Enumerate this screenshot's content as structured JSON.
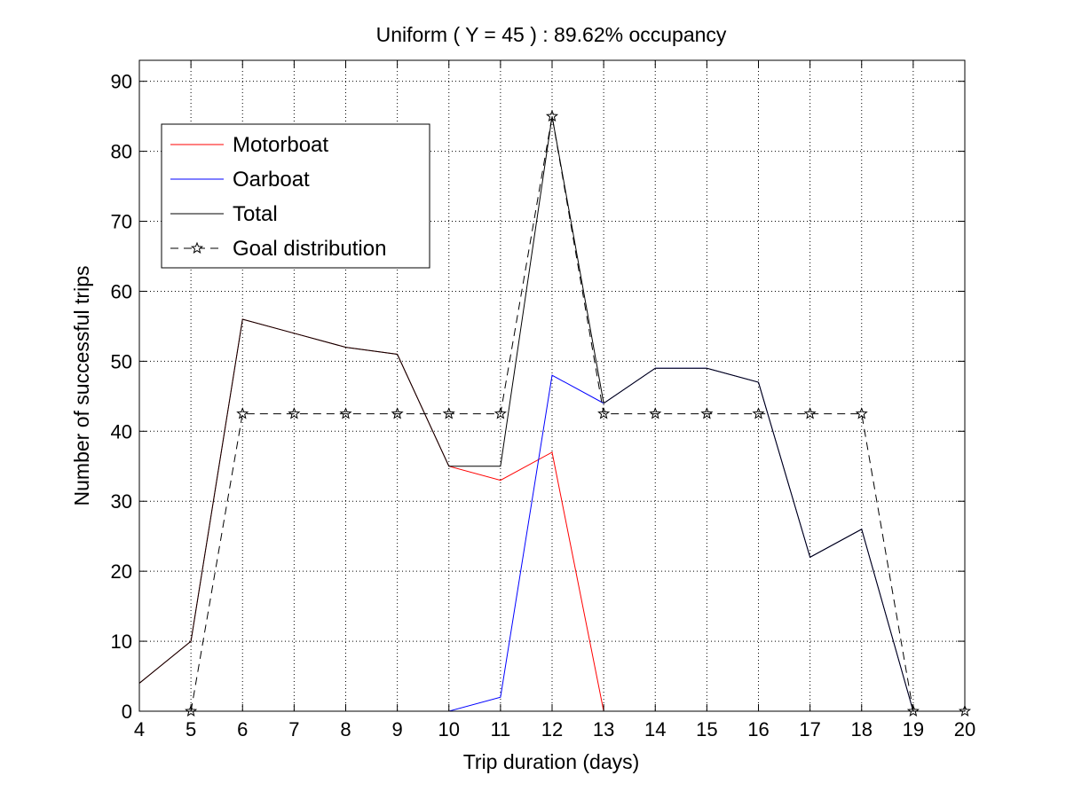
{
  "chart_data": {
    "type": "line",
    "title": "Uniform ( Y = 45 ) : 89.62% occupancy",
    "xlabel": "Trip duration (days)",
    "ylabel": "Number of successful trips",
    "xlim": [
      4,
      20
    ],
    "ylim": [
      0,
      93
    ],
    "xticks": [
      4,
      5,
      6,
      7,
      8,
      9,
      10,
      11,
      12,
      13,
      14,
      15,
      16,
      17,
      18,
      19,
      20
    ],
    "yticks": [
      0,
      10,
      20,
      30,
      40,
      50,
      60,
      70,
      80,
      90
    ],
    "grid": true,
    "legend_position": "top-left",
    "series": [
      {
        "name": "Motorboat",
        "color": "#ff0000",
        "style": "solid",
        "marker": "none",
        "x": [
          4,
          5,
          6,
          7,
          8,
          9,
          10,
          11,
          12,
          13,
          14,
          15,
          16,
          17,
          18,
          19
        ],
        "values": [
          4,
          10,
          56,
          54,
          52,
          51,
          35,
          33,
          37,
          0,
          0,
          0,
          0,
          0,
          0,
          0
        ]
      },
      {
        "name": "Oarboat",
        "color": "#0000ff",
        "style": "solid",
        "marker": "none",
        "x": [
          4,
          5,
          6,
          7,
          8,
          9,
          10,
          11,
          12,
          13,
          14,
          15,
          16,
          17,
          18,
          19
        ],
        "values": [
          0,
          0,
          0,
          0,
          0,
          0,
          0,
          2,
          48,
          44,
          49,
          49,
          47,
          22,
          26,
          0
        ]
      },
      {
        "name": "Total",
        "color": "#000000",
        "style": "solid",
        "marker": "none",
        "x": [
          4,
          5,
          6,
          7,
          8,
          9,
          10,
          11,
          12,
          13,
          14,
          15,
          16,
          17,
          18,
          19
        ],
        "values": [
          4,
          10,
          56,
          54,
          52,
          51,
          35,
          35,
          85,
          44,
          49,
          49,
          47,
          22,
          26,
          0
        ]
      },
      {
        "name": "Goal distribution",
        "color": "#000000",
        "style": "dashed",
        "marker": "star",
        "x": [
          5,
          6,
          7,
          8,
          9,
          10,
          11,
          12,
          13,
          14,
          15,
          16,
          17,
          18,
          19,
          20
        ],
        "values": [
          0,
          42.5,
          42.5,
          42.5,
          42.5,
          42.5,
          42.5,
          85,
          42.5,
          42.5,
          42.5,
          42.5,
          42.5,
          42.5,
          0,
          0
        ]
      }
    ]
  }
}
